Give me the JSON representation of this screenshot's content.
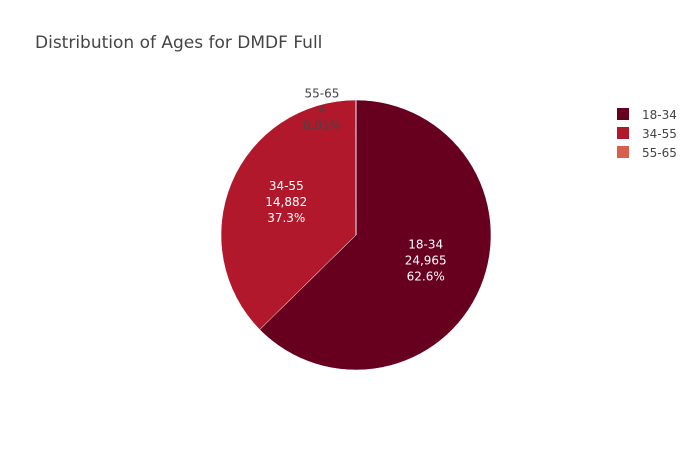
{
  "chart_data": {
    "type": "pie",
    "title": "Distribution of Ages for DMDF Full",
    "slices": [
      {
        "label": "18-34",
        "value": 24965,
        "value_text": "24,965",
        "percent_text": "62.6%",
        "color": "#67001f"
      },
      {
        "label": "34-55",
        "value": 14882,
        "value_text": "14,882",
        "percent_text": "37.3%",
        "color": "#b2182b"
      },
      {
        "label": "55-65",
        "value": 4,
        "value_text": "4",
        "percent_text": "0.01%",
        "color": "#d6604d"
      }
    ],
    "legend": {
      "placement": "top-right",
      "entries": [
        "18-34",
        "34-55",
        "55-65"
      ]
    },
    "direction": "clockwise",
    "start": "top"
  }
}
